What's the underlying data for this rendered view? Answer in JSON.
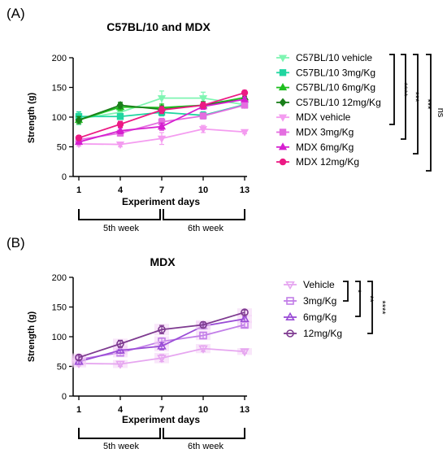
{
  "colors": {
    "c57_vehicle": "#7ff5b2",
    "c57_3mg": "#20d6a0",
    "c57_6mg": "#1fbf1f",
    "c57_12mg": "#1a7f1a",
    "mdx_vehicle": "#f49cf0",
    "mdx_3mg": "#e46ee0",
    "mdx_6mg": "#d61fd0",
    "mdx_12mg": "#ec1a84",
    "b_vehicle": "#e6a6f0",
    "b_3mg": "#c27ee8",
    "b_6mg": "#9a4cd6",
    "b_12mg": "#7e3a90"
  },
  "panel_labels": [
    "(A)",
    "(B)"
  ],
  "weeks": [
    "5th week",
    "6th week"
  ],
  "chart_data": [
    {
      "type": "line",
      "title": "C57BL/10 and MDX",
      "xlabel": "Experiment days",
      "ylabel": "Strength (g)",
      "x": [
        1,
        4,
        7,
        10,
        13
      ],
      "x_ticks": [
        "1",
        "4",
        "7",
        "10",
        "13"
      ],
      "y_ticks": [
        "0",
        "50",
        "100",
        "150",
        "200"
      ],
      "ylim": [
        0,
        200
      ],
      "legend_position": "right",
      "series": [
        {
          "name": "C57BL/10 vehicle",
          "values": [
            97,
            108,
            132,
            132,
            121
          ],
          "errors": [
            10,
            6,
            12,
            10,
            4
          ],
          "color": "#7ff5b2",
          "marker": "triangle-down"
        },
        {
          "name": "C57BL/10 3mg/Kg",
          "values": [
            101,
            101,
            108,
            103,
            121
          ],
          "errors": [
            8,
            5,
            6,
            6,
            5
          ],
          "color": "#20d6a0",
          "marker": "square"
        },
        {
          "name": "C57BL/10 6mg/Kg",
          "values": [
            95,
            117,
            116,
            120,
            133
          ],
          "errors": [
            6,
            6,
            6,
            6,
            5
          ],
          "color": "#1fbf1f",
          "marker": "triangle-up"
        },
        {
          "name": "C57BL/10 12mg/Kg",
          "values": [
            95,
            120,
            113,
            120,
            130
          ],
          "errors": [
            6,
            5,
            6,
            6,
            5
          ],
          "color": "#1a7f1a",
          "marker": "diamond"
        },
        {
          "name": "MDX vehicle",
          "values": [
            55,
            54,
            64,
            80,
            75
          ],
          "errors": [
            4,
            4,
            10,
            6,
            3
          ],
          "color": "#f49cf0",
          "marker": "triangle-down"
        },
        {
          "name": "MDX 3mg/Kg",
          "values": [
            62,
            73,
            92,
            102,
            120
          ],
          "errors": [
            4,
            5,
            6,
            5,
            4
          ],
          "color": "#e46ee0",
          "marker": "square"
        },
        {
          "name": "MDX 6mg/Kg",
          "values": [
            58,
            77,
            84,
            118,
            130
          ],
          "errors": [
            4,
            5,
            6,
            5,
            4
          ],
          "color": "#d61fd0",
          "marker": "triangle-up"
        },
        {
          "name": "MDX 12mg/Kg",
          "values": [
            65,
            88,
            112,
            120,
            141
          ],
          "errors": [
            4,
            5,
            6,
            5,
            4
          ],
          "color": "#ec1a84",
          "marker": "circle"
        }
      ],
      "significance": [
        "****",
        "***",
        "***",
        "ns"
      ]
    },
    {
      "type": "line",
      "title": "MDX",
      "xlabel": "Experiment days",
      "ylabel": "Strength (g)",
      "x": [
        1,
        4,
        7,
        10,
        13
      ],
      "x_ticks": [
        "1",
        "4",
        "7",
        "10",
        "13"
      ],
      "y_ticks": [
        "0",
        "50",
        "100",
        "150",
        "200"
      ],
      "ylim": [
        0,
        200
      ],
      "legend_position": "right",
      "series": [
        {
          "name": "Vehicle",
          "values": [
            55,
            54,
            64,
            80,
            75
          ],
          "errors": [
            4,
            4,
            6,
            5,
            3
          ],
          "color": "#e6a6f0",
          "marker": "triangle-down"
        },
        {
          "name": "3mg/Kg",
          "values": [
            62,
            73,
            92,
            102,
            120
          ],
          "errors": [
            4,
            5,
            6,
            5,
            4
          ],
          "color": "#c27ee8",
          "marker": "square"
        },
        {
          "name": "6mg/Kg",
          "values": [
            58,
            77,
            84,
            118,
            130
          ],
          "errors": [
            4,
            5,
            6,
            5,
            4
          ],
          "color": "#9a4cd6",
          "marker": "triangle-up"
        },
        {
          "name": "12mg/Kg",
          "values": [
            65,
            88,
            112,
            120,
            141
          ],
          "errors": [
            4,
            6,
            7,
            5,
            4
          ],
          "color": "#7e3a90",
          "marker": "circle"
        }
      ],
      "significance": [
        "*",
        "**",
        "****"
      ]
    }
  ]
}
